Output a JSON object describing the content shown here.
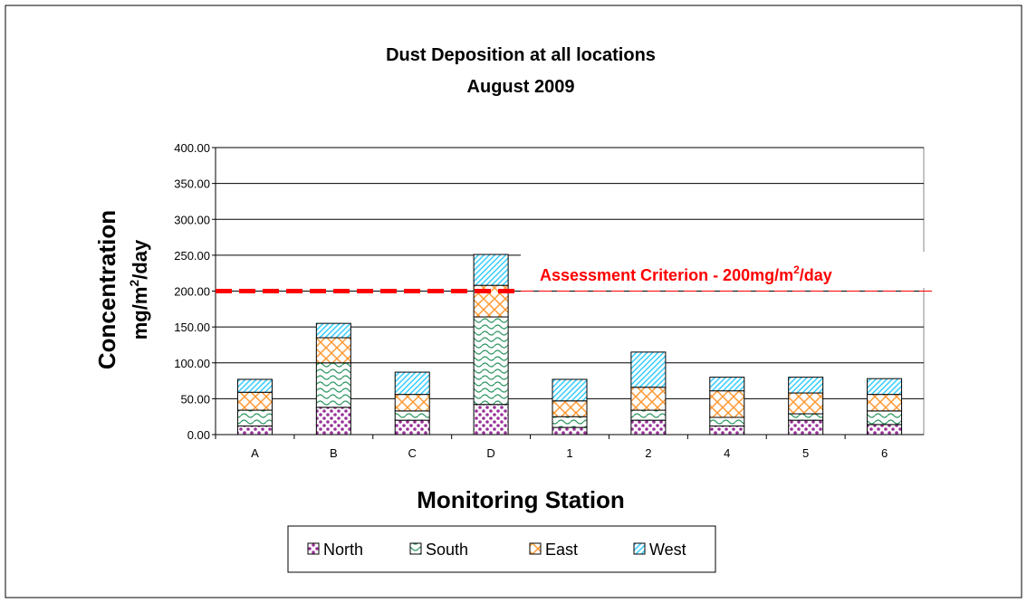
{
  "chart_data": {
    "type": "stacked_bar",
    "title": "Dust Deposition at all locations",
    "subtitle": "August 2009",
    "xlabel": "Monitoring Station",
    "ylabel": {
      "line1": "Concentration",
      "line2": [
        "mg/m",
        "2",
        "/day"
      ]
    },
    "categories": [
      "A",
      "B",
      "C",
      "D",
      "1",
      "2",
      "4",
      "5",
      "6"
    ],
    "series": [
      {
        "name": "North",
        "color": "#993399",
        "values": [
          12,
          38,
          20,
          42,
          10,
          20,
          12,
          20,
          14
        ]
      },
      {
        "name": "South",
        "color": "#339966",
        "values": [
          22,
          62,
          13,
          122,
          15,
          14,
          12,
          9,
          19
        ]
      },
      {
        "name": "East",
        "color": "#ff9933",
        "values": [
          25,
          35,
          23,
          44,
          22,
          32,
          37,
          29,
          23
        ]
      },
      {
        "name": "West",
        "color": "#33ccff",
        "values": [
          18,
          20,
          31,
          43,
          30,
          49,
          19,
          22,
          22
        ]
      }
    ],
    "ylim": [
      0,
      400
    ],
    "yticks": [
      {
        "value": 0,
        "label": "0.00"
      },
      {
        "value": 50,
        "label": "50.00"
      },
      {
        "value": 100,
        "label": "100.00"
      },
      {
        "value": 150,
        "label": "150.00"
      },
      {
        "value": 200,
        "label": "200.00"
      },
      {
        "value": 250,
        "label": "250.00"
      },
      {
        "value": 300,
        "label": "300.00"
      },
      {
        "value": 350,
        "label": "350.00"
      },
      {
        "value": 400,
        "label": "400.00"
      }
    ],
    "grid": true,
    "legend": "bottom",
    "criterion": {
      "value": 200,
      "color": "#ff0000",
      "label": [
        "Assessment Criterion - 200mg/m",
        "2",
        "/day"
      ]
    }
  }
}
